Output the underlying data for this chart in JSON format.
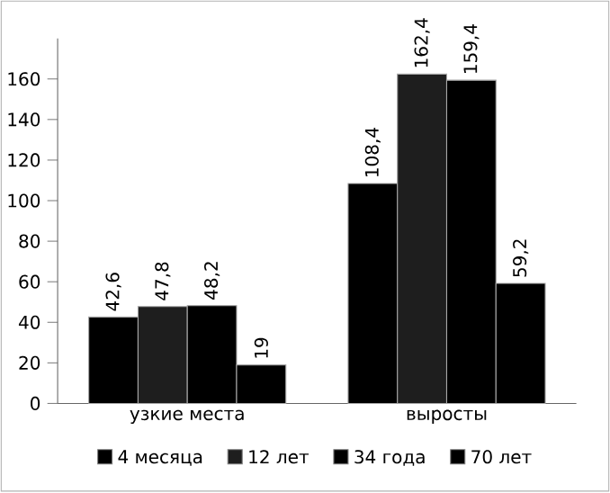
{
  "chart_data": {
    "type": "bar",
    "categories": [
      "узкие места",
      "выросты"
    ],
    "series": [
      {
        "name": "4 месяца",
        "color": "#000000",
        "values": [
          42.6,
          108.4
        ],
        "value_labels": [
          "42,6",
          "108,4"
        ]
      },
      {
        "name": "12 лет",
        "color": "#1e1e1e",
        "values": [
          47.8,
          162.4
        ],
        "value_labels": [
          "47,8",
          "162,4"
        ]
      },
      {
        "name": "34 года",
        "color": "#000000",
        "values": [
          48.2,
          159.4
        ],
        "value_labels": [
          "48,2",
          "159,4"
        ]
      },
      {
        "name": "70 лет",
        "color": "#000000",
        "values": [
          19,
          59.2
        ],
        "value_labels": [
          "19",
          "59,2"
        ]
      }
    ],
    "ylim": [
      0,
      180
    ],
    "yticks": [
      0,
      20,
      40,
      60,
      80,
      100,
      120,
      140,
      160
    ],
    "legend": "bottom",
    "grid": false
  }
}
